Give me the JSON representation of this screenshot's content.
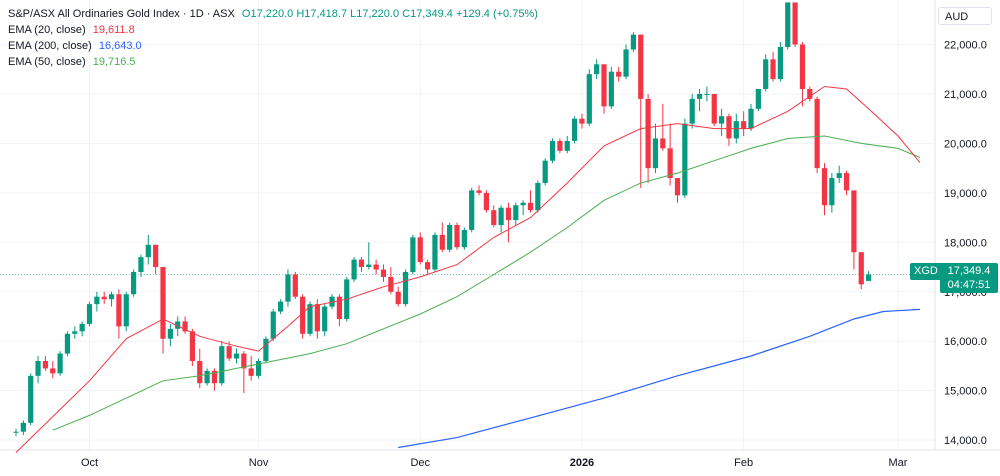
{
  "legend": {
    "title": "S&P/ASX All Ordinaries Gold Index · 1D · ASX",
    "ohlc": "O17,220.0 H17,418.7 L17,220.0 C17,349.4 +129.4 (+0.75%)",
    "ema20_label": "EMA (20, close)",
    "ema20_value": "19,611.8",
    "ema200_label": "EMA (200, close)",
    "ema200_value": "16,643.0",
    "ema50_label": "EMA (50, close)",
    "ema50_value": "19,716.5"
  },
  "currency": "AUD",
  "symbol_badge": "XGD",
  "last_price": "17,349.4",
  "countdown": "04:47:51",
  "colors": {
    "up": "#089981",
    "down": "#f23645",
    "ema20": "#f23645",
    "ema200": "#2962ff",
    "ema50": "#4caf50",
    "grid": "#f0f3fa",
    "text": "#131722"
  },
  "chart_data": {
    "type": "candlestick",
    "ylim": [
      13800,
      22900
    ],
    "y_ticks": [
      14000,
      15000,
      16000,
      17000,
      18000,
      19000,
      20000,
      21000,
      22000
    ],
    "y_tick_labels": [
      "14,000.0",
      "15,000.0",
      "16,000.0",
      "17,000.0",
      "18,000.0",
      "19,000.0",
      "20,000.0",
      "21,000.0",
      "22,000.0"
    ],
    "x_tick_labels": [
      "Oct",
      "Nov",
      "Dec",
      "2026",
      "Feb",
      "Mar"
    ],
    "x_tick_bar_index": [
      10,
      33,
      55,
      77,
      99,
      120
    ],
    "x_tick_bold": [
      false,
      false,
      false,
      true,
      false,
      false
    ],
    "last_price": 17349.4,
    "candles": [
      [
        14150,
        14230,
        14080,
        14170
      ],
      [
        14170,
        14400,
        14100,
        14350
      ],
      [
        14350,
        15350,
        14300,
        15300
      ],
      [
        15300,
        15700,
        15150,
        15600
      ],
      [
        15600,
        15700,
        15400,
        15450
      ],
      [
        15450,
        15600,
        15250,
        15350
      ],
      [
        15350,
        15800,
        15300,
        15750
      ],
      [
        15750,
        16200,
        15700,
        16150
      ],
      [
        16150,
        16300,
        16050,
        16200
      ],
      [
        16200,
        16400,
        16100,
        16350
      ],
      [
        16350,
        16800,
        16300,
        16750
      ],
      [
        16750,
        17000,
        16600,
        16900
      ],
      [
        16900,
        17000,
        16750,
        16850
      ],
      [
        16850,
        17000,
        16700,
        16950
      ],
      [
        16950,
        17050,
        16050,
        16300
      ],
      [
        16300,
        17000,
        16200,
        16950
      ],
      [
        16950,
        17450,
        16900,
        17400
      ],
      [
        17400,
        17750,
        17300,
        17700
      ],
      [
        17700,
        18150,
        17550,
        17950
      ],
      [
        17950,
        17950,
        17350,
        17500
      ],
      [
        17500,
        17500,
        15750,
        16050
      ],
      [
        16050,
        16350,
        15900,
        16250
      ],
      [
        16250,
        16500,
        16100,
        16400
      ],
      [
        16400,
        16500,
        16150,
        16200
      ],
      [
        16200,
        16250,
        15500,
        15600
      ],
      [
        15600,
        15850,
        15050,
        15150
      ],
      [
        15150,
        15450,
        15100,
        15400
      ],
      [
        15400,
        15450,
        15000,
        15150
      ],
      [
        15150,
        16000,
        15100,
        15900
      ],
      [
        15900,
        16000,
        15600,
        15650
      ],
      [
        15650,
        15850,
        15550,
        15750
      ],
      [
        15750,
        15800,
        14950,
        15450
      ],
      [
        15450,
        15700,
        15200,
        15300
      ],
      [
        15300,
        15650,
        15250,
        15600
      ],
      [
        15600,
        16100,
        15550,
        16050
      ],
      [
        16050,
        16650,
        16000,
        16600
      ],
      [
        16600,
        16850,
        16550,
        16800
      ],
      [
        16800,
        17450,
        16700,
        17350
      ],
      [
        17350,
        17400,
        16850,
        16900
      ],
      [
        16900,
        16950,
        16050,
        16150
      ],
      [
        16150,
        16800,
        16100,
        16750
      ],
      [
        16750,
        16850,
        16050,
        16200
      ],
      [
        16200,
        16750,
        16100,
        16700
      ],
      [
        16700,
        16950,
        16650,
        16900
      ],
      [
        16900,
        16950,
        16300,
        16450
      ],
      [
        16450,
        17300,
        16400,
        17250
      ],
      [
        17250,
        17700,
        17200,
        17650
      ],
      [
        17650,
        17700,
        17400,
        17500
      ],
      [
        17500,
        18000,
        17450,
        17550
      ],
      [
        17550,
        17650,
        17350,
        17450
      ],
      [
        17450,
        17550,
        17200,
        17300
      ],
      [
        17300,
        17500,
        16950,
        17000
      ],
      [
        17000,
        17100,
        16700,
        16750
      ],
      [
        16750,
        17450,
        16700,
        17400
      ],
      [
        17400,
        18150,
        17350,
        18100
      ],
      [
        18100,
        18200,
        17550,
        17600
      ],
      [
        17600,
        17650,
        17350,
        17450
      ],
      [
        17450,
        18200,
        17400,
        18150
      ],
      [
        18150,
        18400,
        17800,
        17850
      ],
      [
        17850,
        18400,
        17800,
        18350
      ],
      [
        18350,
        18400,
        17850,
        17900
      ],
      [
        17900,
        18300,
        17850,
        18250
      ],
      [
        18250,
        19100,
        18200,
        19050
      ],
      [
        19050,
        19150,
        18950,
        19000
      ],
      [
        19000,
        19050,
        18600,
        18650
      ],
      [
        18650,
        18750,
        18300,
        18350
      ],
      [
        18350,
        18750,
        18200,
        18700
      ],
      [
        18700,
        18800,
        18000,
        18450
      ],
      [
        18450,
        18800,
        18350,
        18750
      ],
      [
        18750,
        18850,
        18550,
        18800
      ],
      [
        18800,
        19050,
        18600,
        18650
      ],
      [
        18650,
        19250,
        18600,
        19200
      ],
      [
        19200,
        19700,
        19150,
        19650
      ],
      [
        19650,
        20100,
        19600,
        20050
      ],
      [
        20050,
        20100,
        19800,
        19850
      ],
      [
        19850,
        20150,
        19800,
        20050
      ],
      [
        20050,
        20550,
        20000,
        20500
      ],
      [
        20500,
        20600,
        20300,
        20400
      ],
      [
        20400,
        21500,
        20350,
        21400
      ],
      [
        21400,
        21700,
        21300,
        21600
      ],
      [
        21600,
        21550,
        20600,
        20750
      ],
      [
        20750,
        21550,
        20700,
        21450
      ],
      [
        21450,
        21550,
        21250,
        21350
      ],
      [
        21350,
        22000,
        21300,
        21900
      ],
      [
        21900,
        22250,
        21850,
        22200
      ],
      [
        22200,
        22200,
        19100,
        20900
      ],
      [
        20900,
        21000,
        19200,
        19500
      ],
      [
        19500,
        20400,
        19400,
        20100
      ],
      [
        20100,
        20800,
        19850,
        19900
      ],
      [
        19900,
        20400,
        19150,
        19300
      ],
      [
        19300,
        19300,
        18800,
        18950
      ],
      [
        18950,
        20500,
        18900,
        20400
      ],
      [
        20400,
        21000,
        20300,
        20900
      ],
      [
        20900,
        21100,
        20650,
        21000
      ],
      [
        21000,
        21150,
        20850,
        21000
      ],
      [
        21000,
        21000,
        20350,
        20400
      ],
      [
        20400,
        20700,
        20150,
        20550
      ],
      [
        20550,
        20600,
        19950,
        20100
      ],
      [
        20100,
        20600,
        20000,
        20450
      ],
      [
        20450,
        20650,
        20150,
        20300
      ],
      [
        20300,
        20800,
        20250,
        20700
      ],
      [
        20700,
        21100,
        20650,
        21100
      ],
      [
        21100,
        21800,
        21050,
        21700
      ],
      [
        21700,
        21850,
        21250,
        21300
      ],
      [
        21300,
        22050,
        21250,
        21950
      ],
      [
        21950,
        22850,
        21900,
        22850
      ],
      [
        22850,
        22850,
        21950,
        22000
      ],
      [
        22000,
        22050,
        20750,
        21100
      ],
      [
        21100,
        21150,
        20850,
        20900
      ],
      [
        20900,
        20950,
        19400,
        19500
      ],
      [
        19500,
        19600,
        18550,
        18750
      ],
      [
        18750,
        19400,
        18600,
        19300
      ],
      [
        19300,
        19550,
        19200,
        19400
      ],
      [
        19400,
        19450,
        18950,
        19050
      ],
      [
        19050,
        19050,
        17450,
        17800
      ],
      [
        17800,
        17800,
        17050,
        17150
      ],
      [
        17220,
        17418.7,
        17220,
        17349.4
      ]
    ],
    "ema20": [
      [
        0,
        13750
      ],
      [
        10,
        15200
      ],
      [
        15,
        16050
      ],
      [
        20,
        16450
      ],
      [
        25,
        16100
      ],
      [
        30,
        15900
      ],
      [
        33,
        15800
      ],
      [
        37,
        16300
      ],
      [
        40,
        16700
      ],
      [
        45,
        16850
      ],
      [
        50,
        17100
      ],
      [
        55,
        17300
      ],
      [
        60,
        17550
      ],
      [
        65,
        18100
      ],
      [
        70,
        18500
      ],
      [
        75,
        19200
      ],
      [
        80,
        19950
      ],
      [
        85,
        20300
      ],
      [
        90,
        20400
      ],
      [
        95,
        20300
      ],
      [
        100,
        20300
      ],
      [
        105,
        20650
      ],
      [
        110,
        21150
      ],
      [
        113,
        21100
      ],
      [
        116,
        20700
      ],
      [
        120,
        20150
      ],
      [
        123,
        19611.8
      ]
    ],
    "ema50": [
      [
        5,
        14200
      ],
      [
        10,
        14500
      ],
      [
        15,
        14850
      ],
      [
        20,
        15200
      ],
      [
        25,
        15300
      ],
      [
        30,
        15450
      ],
      [
        35,
        15600
      ],
      [
        40,
        15750
      ],
      [
        45,
        15950
      ],
      [
        50,
        16250
      ],
      [
        55,
        16550
      ],
      [
        60,
        16900
      ],
      [
        65,
        17350
      ],
      [
        70,
        17800
      ],
      [
        75,
        18300
      ],
      [
        80,
        18850
      ],
      [
        85,
        19200
      ],
      [
        90,
        19400
      ],
      [
        95,
        19650
      ],
      [
        100,
        19900
      ],
      [
        105,
        20100
      ],
      [
        110,
        20150
      ],
      [
        115,
        20000
      ],
      [
        120,
        19900
      ],
      [
        123,
        19716.5
      ]
    ],
    "ema200": [
      [
        52,
        13850
      ],
      [
        60,
        14050
      ],
      [
        70,
        14450
      ],
      [
        80,
        14850
      ],
      [
        90,
        15300
      ],
      [
        100,
        15700
      ],
      [
        108,
        16100
      ],
      [
        114,
        16450
      ],
      [
        118,
        16600
      ],
      [
        123,
        16643
      ]
    ]
  }
}
